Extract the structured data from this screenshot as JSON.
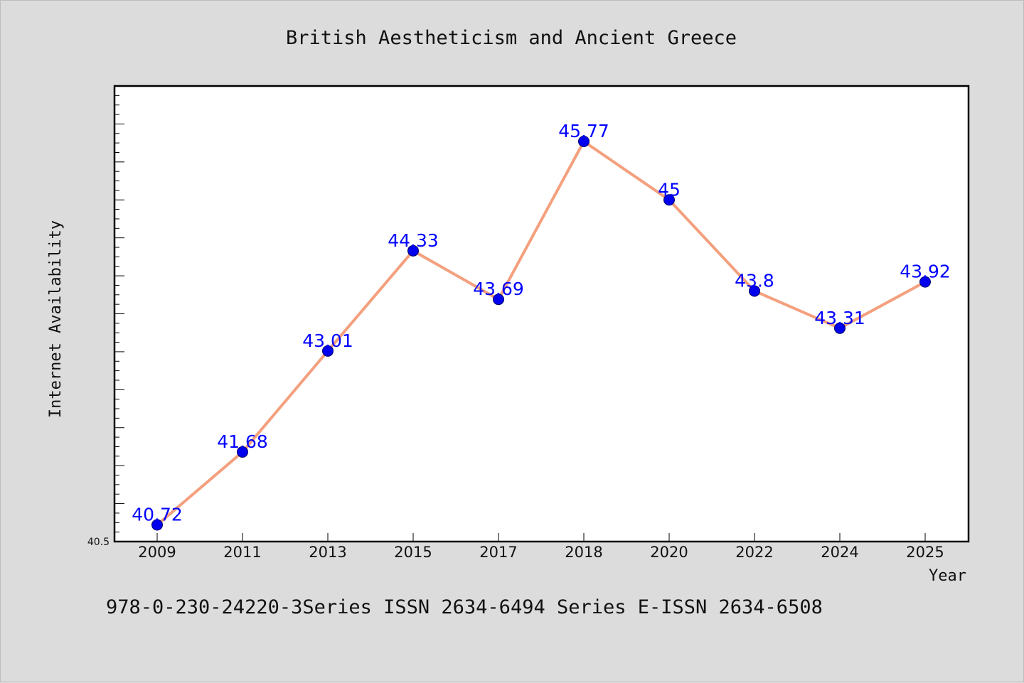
{
  "chart_data": {
    "type": "line",
    "title": "British Aestheticism and Ancient Greece",
    "xlabel": "Year",
    "ylabel": "Internet Availability",
    "categories": [
      "2009",
      "2011",
      "2013",
      "2015",
      "2017",
      "2018",
      "2020",
      "2022",
      "2024",
      "2025"
    ],
    "series": [
      {
        "values": [
          40.72,
          41.68,
          43.01,
          44.33,
          43.69,
          45.77,
          45,
          43.8,
          43.31,
          43.92
        ],
        "labels": [
          "40.72",
          "41.68",
          "43.01",
          "44.33",
          "43.69",
          "45.77",
          "45",
          "43.8",
          "43.31",
          "43.92"
        ]
      }
    ],
    "ylim": [
      40.5,
      46.5
    ],
    "ylim_label": "40.5",
    "grid": false,
    "line_color": "#f4a07e",
    "marker_color": "#0000ee",
    "label_color": "#0000ff"
  },
  "footer": "978-0-230-24220-3Series ISSN 2634-6494 Series E-ISSN 2634-6508"
}
